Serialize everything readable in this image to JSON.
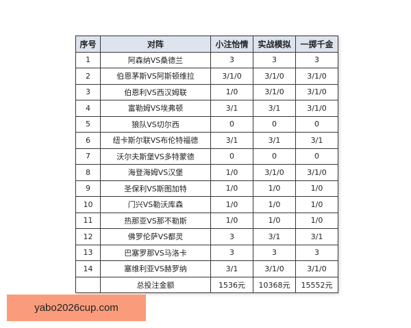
{
  "table": {
    "headers": [
      "序号",
      "对阵",
      "小注怡情",
      "实战模拟",
      "一掷千金"
    ],
    "rows": [
      [
        "1",
        "阿森纳VS桑德兰",
        "3",
        "3",
        "3"
      ],
      [
        "2",
        "伯恩茅斯VS阿斯顿维拉",
        "3/1/0",
        "3/1/0",
        "3/1/0"
      ],
      [
        "3",
        "伯恩利VS西汉姆联",
        "1/0",
        "3/1/0",
        "3/1/0"
      ],
      [
        "4",
        "富勒姆VS埃弗顿",
        "3/1",
        "3/1",
        "3/1/0"
      ],
      [
        "5",
        "狼队VS切尔西",
        "0",
        "0",
        "0"
      ],
      [
        "6",
        "纽卡斯尔联VS布伦特福德",
        "3/1",
        "3/1",
        "3/1"
      ],
      [
        "7",
        "沃尔夫斯堡VS多特蒙德",
        "0",
        "0",
        "0"
      ],
      [
        "8",
        "海登海姆VS汉堡",
        "1/0",
        "3/1/0",
        "3/1/0"
      ],
      [
        "9",
        "圣保利VS斯图加特",
        "1/0",
        "1/0",
        "1/0"
      ],
      [
        "10",
        "门兴VS勒沃库森",
        "1/0",
        "1/0",
        "1/0"
      ],
      [
        "11",
        "热那亚VS那不勒斯",
        "1/0",
        "1/0",
        "1/0"
      ],
      [
        "12",
        "佛罗伦萨VS都灵",
        "3",
        "3/1",
        "3/1"
      ],
      [
        "13",
        "巴塞罗那VS马洛卡",
        "3",
        "3",
        "3"
      ],
      [
        "14",
        "塞维利亚VS赫罗纳",
        "3/1",
        "3/1/0",
        "3/1/0"
      ]
    ],
    "total": [
      "",
      "总投注金额",
      "1536元",
      "10368元",
      "15552元"
    ]
  },
  "banner": {
    "text": "yabo2026cup.com",
    "color": "#fa9c7c"
  }
}
